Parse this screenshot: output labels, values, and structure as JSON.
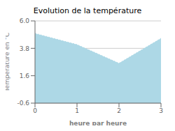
{
  "chart_data": {
    "type": "area",
    "title": "Evolution de la température",
    "xlabel": "heure par heure",
    "ylabel": "Température en °C",
    "x": [
      0,
      1,
      2,
      3
    ],
    "values": [
      5.0,
      4.1,
      2.6,
      4.6
    ],
    "xlim": [
      0,
      3
    ],
    "ylim": [
      -0.6,
      6.0
    ],
    "xticks": [
      0,
      1,
      2,
      3
    ],
    "yticks": [
      -0.6,
      1.6,
      3.8,
      {
        "value": 6.0,
        "label": "6.0"
      }
    ],
    "color": "#add8e6",
    "line_style": "dotted",
    "grid": true
  }
}
